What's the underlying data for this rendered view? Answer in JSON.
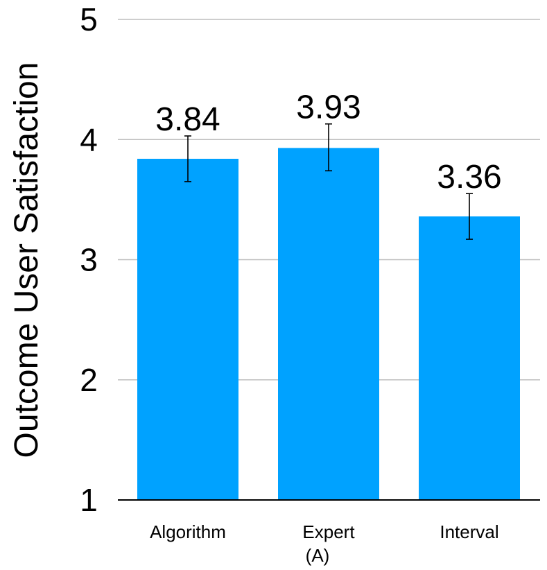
{
  "chart_data": {
    "type": "bar",
    "categories": [
      "Algorithm",
      "Expert (A)",
      "Interval"
    ],
    "category_lines": [
      [
        "Algorithm"
      ],
      [
        "Expert",
        "(A)"
      ],
      [
        "Interval"
      ]
    ],
    "values": [
      3.84,
      3.93,
      3.36
    ],
    "value_labels": [
      "3.84",
      "3.93",
      "3.36"
    ],
    "error_low": [
      3.65,
      3.74,
      3.17
    ],
    "error_high": [
      4.03,
      4.13,
      3.55
    ],
    "ylabel": "Outcome User Satisfaction",
    "xlabel": "",
    "ylim": [
      1,
      5
    ],
    "yticks": [
      1,
      2,
      3,
      4,
      5
    ],
    "ytick_labels": [
      "1",
      "2",
      "3",
      "4",
      "5"
    ],
    "grid": true,
    "bar_color": "#00A2FF",
    "grid_color": "#BDBDBD",
    "axis_color": "#000000"
  }
}
